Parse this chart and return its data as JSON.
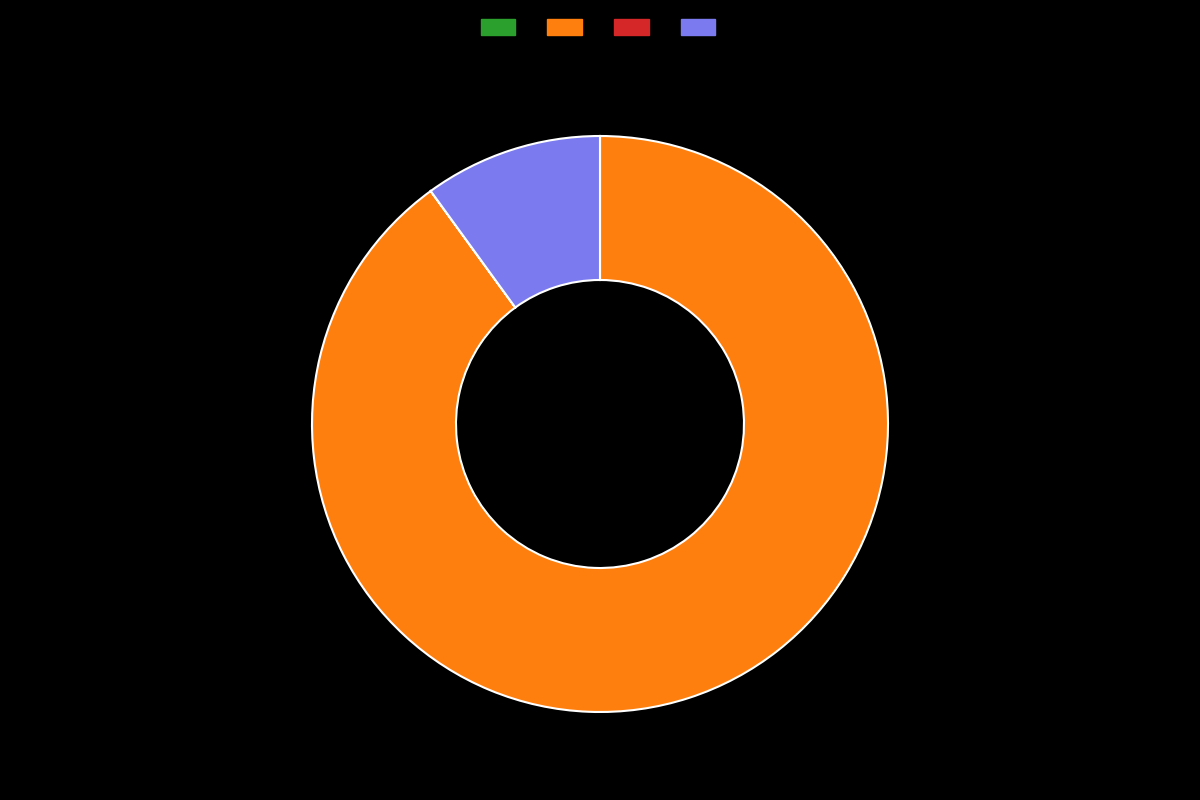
{
  "values": [
    0.001,
    89.999,
    0.001,
    10.0
  ],
  "colors": [
    "#2ca02c",
    "#ff7f0e",
    "#d62728",
    "#7b7bef"
  ],
  "labels": [
    "",
    "",
    "",
    ""
  ],
  "legend_colors": [
    "#2ca02c",
    "#ff7f0e",
    "#d62728",
    "#7b7bef"
  ],
  "background_color": "#000000",
  "wedge_linewidth": 1.5,
  "wedge_edgecolor": "#ffffff",
  "donut_width": 0.5,
  "startangle": 90
}
